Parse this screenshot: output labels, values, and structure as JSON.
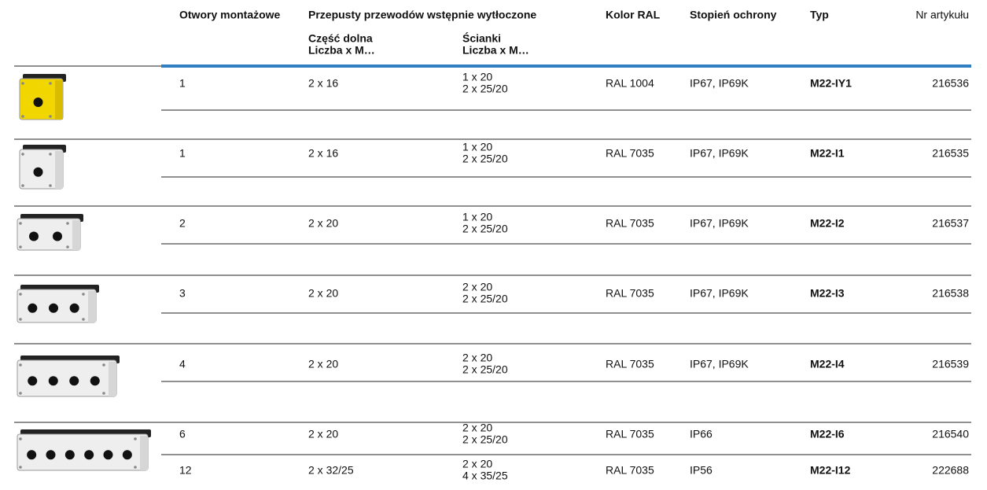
{
  "header": {
    "columns": [
      "Otwory montażowe",
      "Przepusty przewodów wstępnie wytłoczone",
      "Kolor RAL",
      "Stopień ochrony",
      "Typ",
      "Nr artykułu"
    ],
    "subcolumns": [
      [
        "Część dolna",
        "Liczba x M…"
      ],
      [
        "Ścianki",
        "Liczba x M…"
      ]
    ]
  },
  "table": {
    "rows": [
      [
        "1",
        "2 x 16",
        [
          "1 x 20",
          "2 x 25/20"
        ],
        "RAL 1004",
        "IP67, IP69K",
        "M22-IY1",
        "216536"
      ],
      [
        "1",
        "2 x 16",
        [
          "1 x 20",
          "2 x 25/20"
        ],
        "RAL 7035",
        "IP67, IP69K",
        "M22-I1",
        "216535"
      ],
      [
        "2",
        "2 x 20",
        [
          "1 x 20",
          "2 x 25/20"
        ],
        "RAL 7035",
        "IP67, IP69K",
        "M22-I2",
        "216537"
      ],
      [
        "3",
        "2 x 20",
        [
          "2 x 20",
          "2 x 25/20"
        ],
        "RAL 7035",
        "IP67, IP69K",
        "M22-I3",
        "216538"
      ],
      [
        "4",
        "2 x 20",
        [
          "2 x 20",
          "2 x 25/20"
        ],
        "RAL 7035",
        "IP67, IP69K",
        "M22-I4",
        "216539"
      ],
      [
        "6",
        "2 x 20",
        [
          "2 x 20",
          "2 x 25/20"
        ],
        "RAL 7035",
        "IP66",
        "M22-I6",
        "216540"
      ],
      [
        "12",
        "2 x 32/25",
        [
          "2 x 20",
          "4 x 35/25"
        ],
        "RAL 7035",
        "IP56",
        "M22-I12",
        "222688"
      ]
    ]
  }
}
